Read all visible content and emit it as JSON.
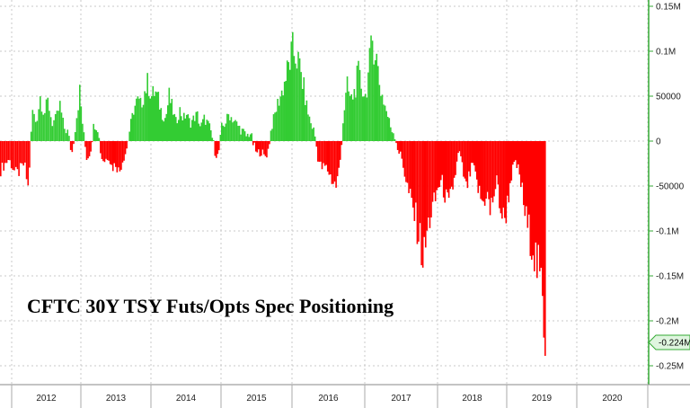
{
  "chart_data": {
    "type": "bar",
    "title": "CFTC 30Y TSY Futs/Opts Spec Positioning",
    "xlabel": "",
    "ylabel": "",
    "ylim": [
      -250000,
      150000
    ],
    "y_ticks": [
      {
        "value": 150000,
        "label": "0.15M"
      },
      {
        "value": 100000,
        "label": "0.1M"
      },
      {
        "value": 50000,
        "label": "50000"
      },
      {
        "value": 0,
        "label": "0"
      },
      {
        "value": -50000,
        "label": "-50000"
      },
      {
        "value": -100000,
        "label": "-0.1M"
      },
      {
        "value": -150000,
        "label": "-0.15M"
      },
      {
        "value": -200000,
        "label": "-0.2M"
      },
      {
        "value": -250000,
        "label": "-0.25M"
      }
    ],
    "x_years": [
      "2012",
      "2013",
      "2014",
      "2015",
      "2016",
      "2017",
      "2018",
      "2019",
      "2020"
    ],
    "last_value_label": "-0.224M",
    "last_value": -224000,
    "grid": true,
    "colors": {
      "positive": "#33cc33",
      "negative": "#ff0000",
      "axis": "#33aa33",
      "badge": "#dff5df"
    },
    "series": [
      {
        "anchors": [
          [
            2011.5,
            -32000
          ],
          [
            2011.6,
            -20000
          ],
          [
            2011.7,
            -38000
          ],
          [
            2011.8,
            -25000
          ],
          [
            2011.85,
            -55000
          ],
          [
            2011.9,
            35000
          ],
          [
            2011.95,
            20000
          ],
          [
            2012.0,
            50000
          ],
          [
            2012.05,
            30000
          ],
          [
            2012.1,
            45000
          ],
          [
            2012.15,
            20000
          ],
          [
            2012.2,
            25000
          ],
          [
            2012.25,
            40000
          ],
          [
            2012.3,
            15000
          ],
          [
            2012.35,
            10000
          ],
          [
            2012.4,
            -15000
          ],
          [
            2012.45,
            20000
          ],
          [
            2012.5,
            55000
          ],
          [
            2012.55,
            10000
          ],
          [
            2012.6,
            -20000
          ],
          [
            2012.65,
            -10000
          ],
          [
            2012.7,
            20000
          ],
          [
            2012.75,
            15000
          ],
          [
            2012.8,
            -18000
          ],
          [
            2012.85,
            -22000
          ],
          [
            2012.9,
            -15000
          ],
          [
            2012.95,
            -30000
          ],
          [
            2013.0,
            -25000
          ],
          [
            2013.05,
            -35000
          ],
          [
            2013.1,
            -20000
          ],
          [
            2013.15,
            -10000
          ],
          [
            2013.2,
            15000
          ],
          [
            2013.25,
            35000
          ],
          [
            2013.3,
            45000
          ],
          [
            2013.35,
            40000
          ],
          [
            2013.4,
            55000
          ],
          [
            2013.45,
            65000
          ],
          [
            2013.5,
            50000
          ],
          [
            2013.55,
            55000
          ],
          [
            2013.6,
            45000
          ],
          [
            2013.65,
            30000
          ],
          [
            2013.7,
            25000
          ],
          [
            2013.75,
            50000
          ],
          [
            2013.8,
            35000
          ],
          [
            2013.85,
            20000
          ],
          [
            2013.9,
            35000
          ],
          [
            2013.95,
            25000
          ],
          [
            2014.0,
            30000
          ],
          [
            2014.05,
            20000
          ],
          [
            2014.1,
            25000
          ],
          [
            2014.15,
            30000
          ],
          [
            2014.2,
            15000
          ],
          [
            2014.25,
            25000
          ],
          [
            2014.3,
            20000
          ],
          [
            2014.35,
            10000
          ],
          [
            2014.4,
            -10000
          ],
          [
            2014.45,
            -18000
          ],
          [
            2014.5,
            15000
          ],
          [
            2014.55,
            20000
          ],
          [
            2014.6,
            30000
          ],
          [
            2014.65,
            25000
          ],
          [
            2014.7,
            20000
          ],
          [
            2014.75,
            15000
          ],
          [
            2014.8,
            10000
          ],
          [
            2014.85,
            5000
          ],
          [
            2014.9,
            10000
          ],
          [
            2014.95,
            -5000
          ],
          [
            2015.0,
            -15000
          ],
          [
            2015.05,
            -10000
          ],
          [
            2015.1,
            -18000
          ],
          [
            2015.15,
            -12000
          ],
          [
            2015.2,
            15000
          ],
          [
            2015.25,
            30000
          ],
          [
            2015.3,
            45000
          ],
          [
            2015.35,
            55000
          ],
          [
            2015.4,
            70000
          ],
          [
            2015.45,
            85000
          ],
          [
            2015.5,
            100000
          ],
          [
            2015.55,
            95000
          ],
          [
            2015.6,
            80000
          ],
          [
            2015.65,
            60000
          ],
          [
            2015.7,
            35000
          ],
          [
            2015.75,
            20000
          ],
          [
            2015.8,
            10000
          ],
          [
            2015.85,
            -20000
          ],
          [
            2015.9,
            -30000
          ],
          [
            2015.95,
            -28000
          ],
          [
            2016.0,
            -35000
          ],
          [
            2016.05,
            -45000
          ],
          [
            2016.1,
            -50000
          ],
          [
            2016.15,
            -25000
          ],
          [
            2016.2,
            30000
          ],
          [
            2016.25,
            60000
          ],
          [
            2016.3,
            45000
          ],
          [
            2016.35,
            55000
          ],
          [
            2016.4,
            75000
          ],
          [
            2016.45,
            60000
          ],
          [
            2016.5,
            50000
          ],
          [
            2016.55,
            80000
          ],
          [
            2016.6,
            115000
          ],
          [
            2016.65,
            95000
          ],
          [
            2016.7,
            60000
          ],
          [
            2016.75,
            45000
          ],
          [
            2016.8,
            30000
          ],
          [
            2016.85,
            15000
          ],
          [
            2016.9,
            8000
          ],
          [
            2016.95,
            -10000
          ],
          [
            2017.0,
            -20000
          ],
          [
            2017.05,
            -40000
          ],
          [
            2017.1,
            -60000
          ],
          [
            2017.15,
            -75000
          ],
          [
            2017.2,
            -90000
          ],
          [
            2017.25,
            -110000
          ],
          [
            2017.3,
            -135000
          ],
          [
            2017.35,
            -100000
          ],
          [
            2017.4,
            -80000
          ],
          [
            2017.45,
            -70000
          ],
          [
            2017.5,
            -50000
          ],
          [
            2017.55,
            -45000
          ],
          [
            2017.6,
            -60000
          ],
          [
            2017.65,
            -75000
          ],
          [
            2017.7,
            -55000
          ],
          [
            2017.75,
            -35000
          ],
          [
            2017.8,
            -10000
          ],
          [
            2017.85,
            -30000
          ],
          [
            2017.9,
            -55000
          ],
          [
            2017.95,
            -40000
          ],
          [
            2018.0,
            -25000
          ],
          [
            2018.05,
            -45000
          ],
          [
            2018.1,
            -60000
          ],
          [
            2018.15,
            -70000
          ],
          [
            2018.2,
            -55000
          ],
          [
            2018.25,
            -80000
          ],
          [
            2018.3,
            -60000
          ],
          [
            2018.35,
            -45000
          ],
          [
            2018.4,
            -75000
          ],
          [
            2018.45,
            -90000
          ],
          [
            2018.5,
            -70000
          ],
          [
            2018.55,
            -40000
          ],
          [
            2018.6,
            -25000
          ],
          [
            2018.65,
            -30000
          ],
          [
            2018.7,
            -50000
          ],
          [
            2018.75,
            -80000
          ],
          [
            2018.8,
            -100000
          ],
          [
            2018.85,
            -110000
          ],
          [
            2018.9,
            -130000
          ],
          [
            2018.95,
            -150000
          ],
          [
            2019.0,
            -175000
          ],
          [
            2019.05,
            -224000
          ]
        ]
      }
    ]
  }
}
